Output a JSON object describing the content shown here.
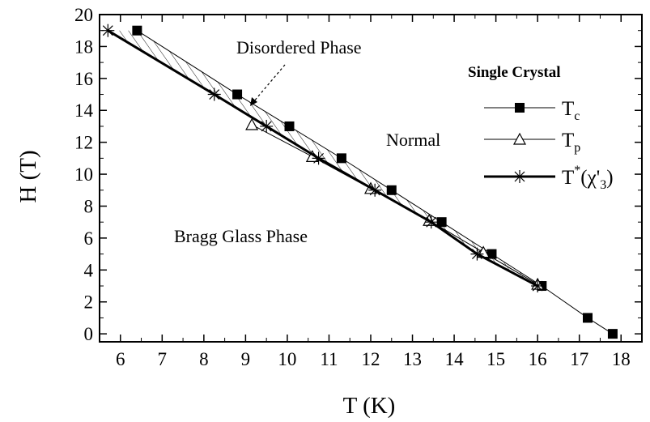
{
  "chart_data": {
    "type": "scatter",
    "xlabel": "T (K)",
    "ylabel": "H (T)",
    "xlim": [
      5.5,
      18.5
    ],
    "ylim": [
      -0.5,
      20
    ],
    "xticks": [
      6,
      7,
      8,
      9,
      10,
      11,
      12,
      13,
      14,
      15,
      16,
      17,
      18
    ],
    "yticks": [
      0,
      2,
      4,
      6,
      8,
      10,
      12,
      14,
      16,
      18,
      20
    ],
    "grid": false,
    "legend": {
      "title": "Single Crystal",
      "position": "top-right",
      "entries": [
        {
          "key": "Tc",
          "base": "T",
          "sub": "c",
          "marker": "filled-square",
          "line": "thin"
        },
        {
          "key": "Tp",
          "base": "T",
          "sub": "p",
          "marker": "open-triangle",
          "line": "thin"
        },
        {
          "key": "Tstar",
          "base": "T",
          "sup": "*",
          "suffix_open": "(χ'",
          "suffix_sub": "3",
          "suffix_close": ")",
          "marker": "asterisk",
          "line": "thick"
        }
      ]
    },
    "series": [
      {
        "key": "Tc",
        "marker": "filled-square",
        "points": [
          [
            6.4,
            19
          ],
          [
            8.8,
            15
          ],
          [
            10.05,
            13
          ],
          [
            11.3,
            11
          ],
          [
            12.5,
            9
          ],
          [
            13.7,
            7
          ],
          [
            14.9,
            5
          ],
          [
            16.1,
            3
          ],
          [
            17.2,
            1
          ],
          [
            17.8,
            0
          ]
        ]
      },
      {
        "key": "Tp",
        "marker": "open-triangle",
        "points": [
          [
            9.15,
            13.1
          ],
          [
            10.6,
            11.1
          ],
          [
            12.0,
            9.1
          ],
          [
            13.4,
            7.1
          ],
          [
            14.7,
            5.1
          ],
          [
            16.0,
            3.1
          ]
        ]
      },
      {
        "key": "Tstar",
        "marker": "asterisk",
        "points": [
          [
            5.7,
            19
          ],
          [
            8.25,
            15
          ],
          [
            9.5,
            13
          ],
          [
            10.75,
            11
          ],
          [
            12.1,
            9
          ],
          [
            13.45,
            7
          ],
          [
            14.55,
            5
          ],
          [
            16.0,
            3
          ]
        ]
      }
    ],
    "annotations": {
      "disordered": "Disordered Phase",
      "normal": "Normal",
      "bragg": "Bragg Glass Phase"
    }
  }
}
